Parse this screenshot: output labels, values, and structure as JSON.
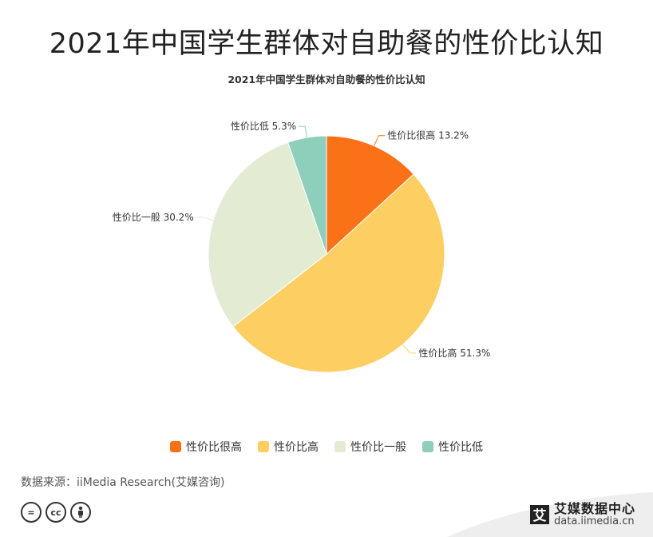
{
  "page": {
    "title": "2021年中国学生群体对自助餐的性价比认知",
    "source": "数据来源：iiMedia Research(艾媒咨询)",
    "brand_name": "艾媒数据中心",
    "brand_url": "data.iimedia.cn",
    "brand_logo_char": "艾"
  },
  "chart_data": {
    "type": "pie",
    "title": "2021年中国学生群体对自助餐的性价比认知",
    "categories": [
      "性价比很高",
      "性价比高",
      "性价比一般",
      "性价比低"
    ],
    "values": [
      13.2,
      51.3,
      30.2,
      5.3
    ],
    "colors": [
      "#fa7118",
      "#fdcf62",
      "#e4ebd3",
      "#8ecfbb"
    ],
    "labels": [
      "性价比很高 13.2%",
      "性价比高 51.3%",
      "性价比一般 30.2%",
      "性价比低 5.3%"
    ],
    "legend_position": "bottom",
    "start_angle": "12 o'clock, clockwise"
  },
  "icons": [
    "cc-equal-icon",
    "cc-icon",
    "cc-by-person-icon"
  ]
}
